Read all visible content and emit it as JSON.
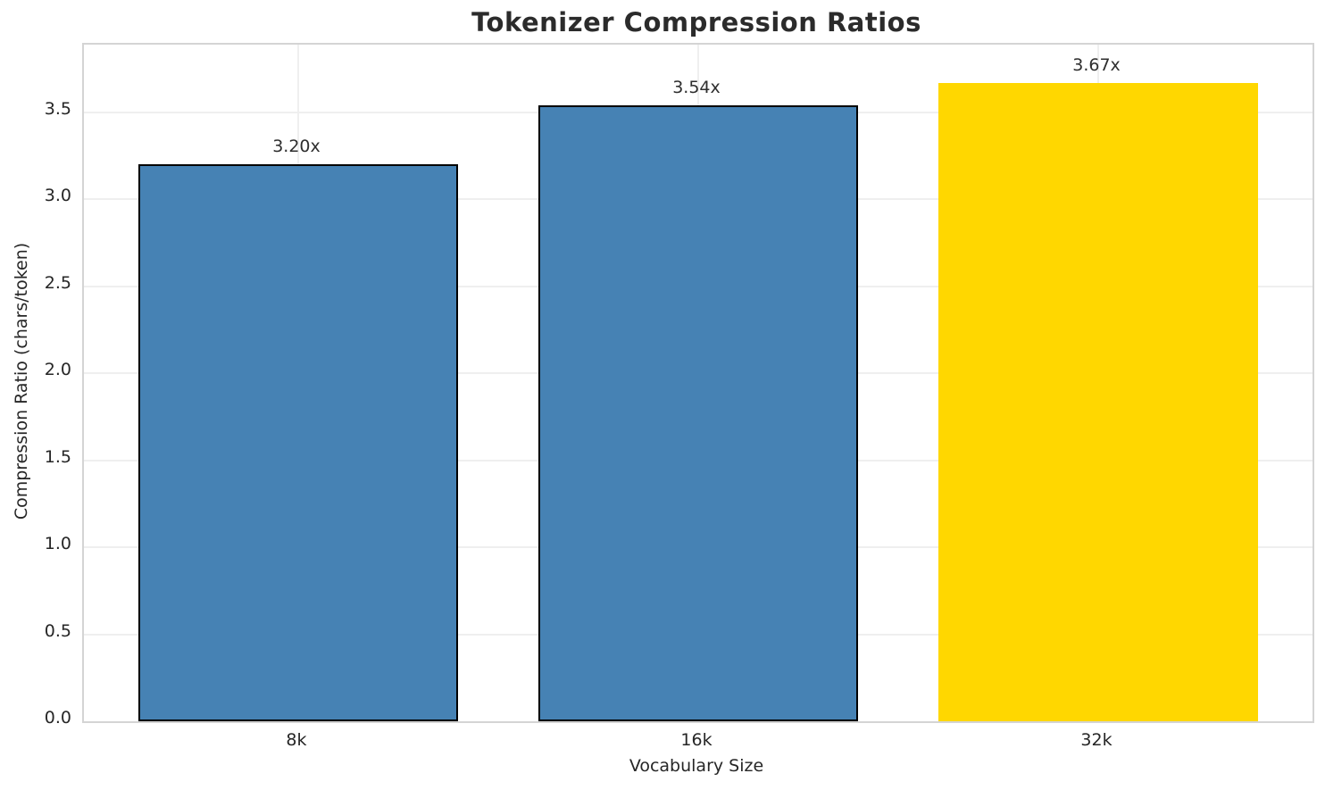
{
  "chart_data": {
    "type": "bar",
    "title": "Tokenizer Compression Ratios",
    "xlabel": "Vocabulary Size",
    "ylabel": "Compression Ratio (chars/token)",
    "categories": [
      "8k",
      "16k",
      "32k"
    ],
    "values": [
      3.2,
      3.54,
      3.67
    ],
    "bar_labels": [
      "3.20x",
      "3.54x",
      "3.67x"
    ],
    "bar_colors": [
      "#4682B4",
      "#4682B4",
      "#FFD700"
    ],
    "bar_edge_colors": [
      "#000000",
      "#000000",
      "none"
    ],
    "ylim": [
      0,
      3.89
    ],
    "yticks": [
      0.0,
      0.5,
      1.0,
      1.5,
      2.0,
      2.5,
      3.0,
      3.5
    ],
    "ytick_labels": [
      "0.0",
      "0.5",
      "1.0",
      "1.5",
      "2.0",
      "2.5",
      "3.0",
      "3.5"
    ],
    "grid": true,
    "legend": "none",
    "colors": {
      "grid": "#efefef",
      "spine": "#d4d4d4",
      "text": "#262626",
      "title": "#2b2b2b",
      "background": "#ffffff"
    }
  }
}
